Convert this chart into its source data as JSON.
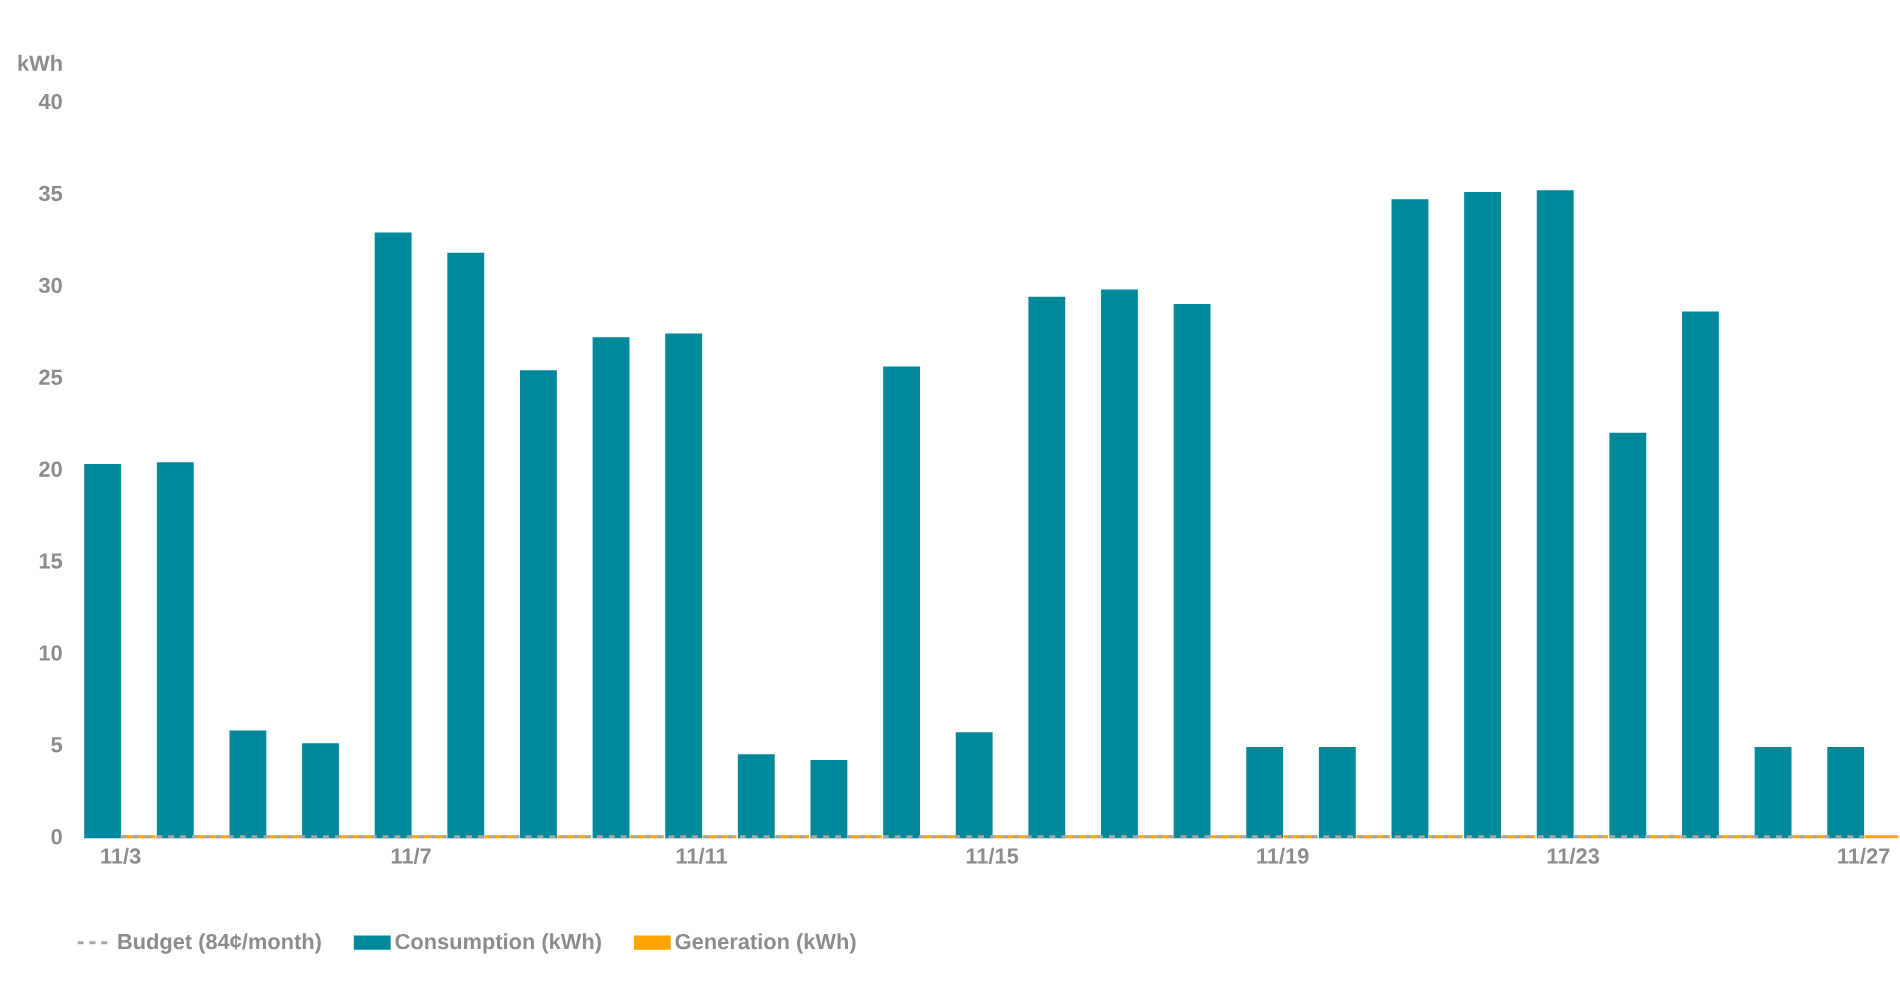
{
  "chart_data": {
    "type": "bar",
    "ylabel": "kWh",
    "categories": [
      "11/3",
      null,
      null,
      null,
      "11/7",
      null,
      null,
      null,
      "11/11",
      null,
      null,
      null,
      "11/15",
      null,
      null,
      null,
      "11/19",
      null,
      null,
      null,
      "11/23",
      null,
      null,
      null,
      "11/27"
    ],
    "series": [
      {
        "name": "Budget (84¢/month)",
        "type": "line",
        "line_style": "dashed",
        "color": "#a6a6a6",
        "values": [
          0,
          0,
          0,
          0,
          0,
          0,
          0,
          0,
          0,
          0,
          0,
          0,
          0,
          0,
          0,
          0,
          0,
          0,
          0,
          0,
          0,
          0,
          0,
          0,
          0
        ]
      },
      {
        "name": "Consumption (kWh)",
        "color": "#00899a",
        "values": [
          20.2,
          20.3,
          5.7,
          5.0,
          32.8,
          31.7,
          25.3,
          27.1,
          27.3,
          4.4,
          4.1,
          25.5,
          5.6,
          29.3,
          29.7,
          28.9,
          4.8,
          4.8,
          34.6,
          35.0,
          35.1,
          21.9,
          28.5,
          4.8,
          4.8
        ]
      },
      {
        "name": "Generation (kWh)",
        "color": "#ffa400",
        "values": [
          0,
          0,
          0,
          0,
          0,
          0,
          0,
          0,
          0,
          0,
          0,
          0,
          0,
          0,
          0,
          0,
          0,
          0,
          0,
          0,
          0,
          0,
          0,
          0,
          0
        ]
      }
    ],
    "ylim": [
      0,
      40
    ],
    "yticks": [
      0,
      5,
      10,
      15,
      20,
      25,
      30,
      35,
      40
    ],
    "grid": false,
    "legend": "bottom left"
  }
}
